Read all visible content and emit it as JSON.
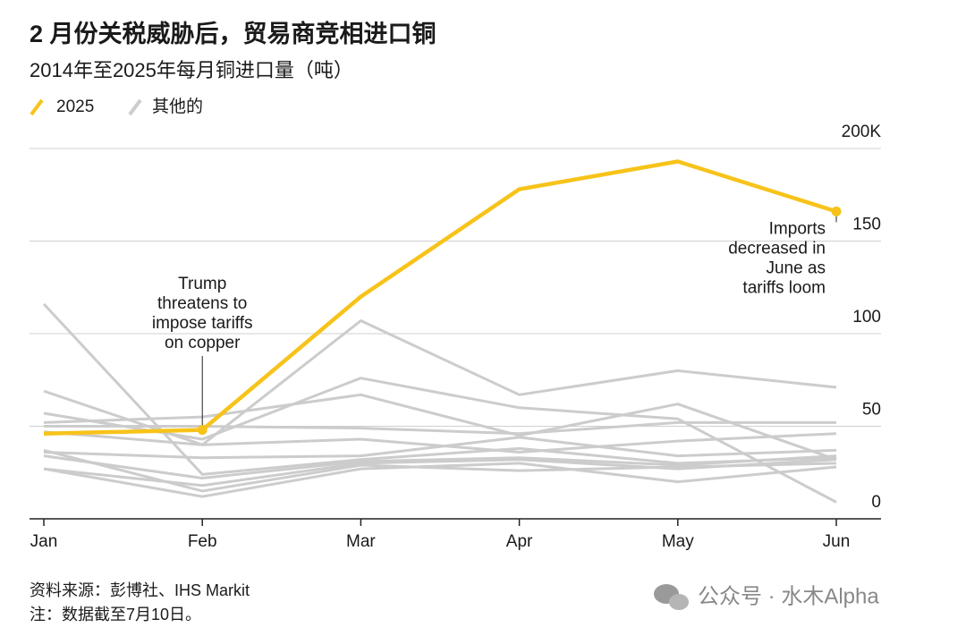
{
  "chart_data": {
    "type": "line",
    "title": "2 月份关税威胁后，贸易商竞相进口铜",
    "subtitle": "2014年至2025年每月铜进口量（吨）",
    "categories": [
      "Jan",
      "Feb",
      "Mar",
      "Apr",
      "May",
      "Jun"
    ],
    "series": [
      {
        "name": "2025",
        "color": "#f7c31a",
        "values": [
          46,
          48,
          120,
          178,
          193,
          166
        ]
      },
      {
        "name": "其他的",
        "color": "#cccccc",
        "values": [
          [
            116,
            24,
            32,
            38,
            30,
            33
          ],
          [
            69,
            40,
            107,
            67,
            80,
            71
          ],
          [
            57,
            43,
            76,
            60,
            54,
            9
          ],
          [
            52,
            55,
            67,
            45,
            62,
            32
          ],
          [
            50,
            50,
            49,
            46,
            52,
            52
          ],
          [
            47,
            40,
            43,
            36,
            42,
            46
          ],
          [
            36,
            33,
            34,
            44,
            34,
            37
          ],
          [
            27,
            12,
            27,
            30,
            20,
            28
          ],
          [
            27,
            18,
            30,
            32,
            27,
            32
          ],
          [
            37,
            15,
            29,
            26,
            28,
            30
          ],
          [
            34,
            22,
            31,
            33,
            29,
            34
          ]
        ]
      }
    ],
    "ylim": [
      0,
      200
    ],
    "yticks": [
      0,
      50,
      100,
      150,
      {
        "value": 200,
        "label": "200K"
      }
    ],
    "grid": true,
    "annotations": [
      {
        "x": "Feb",
        "lines": [
          "Trump",
          "threatens to",
          "impose tariffs",
          "on copper"
        ]
      },
      {
        "x": "Jun",
        "lines": [
          "Imports",
          "decreased in",
          "June as",
          "tariffs loom"
        ]
      }
    ],
    "source": "资料来源：彭博社、IHS Markit",
    "note": "注：数据截至7月10日。",
    "watermark": "公众号 · 水木Alpha"
  }
}
